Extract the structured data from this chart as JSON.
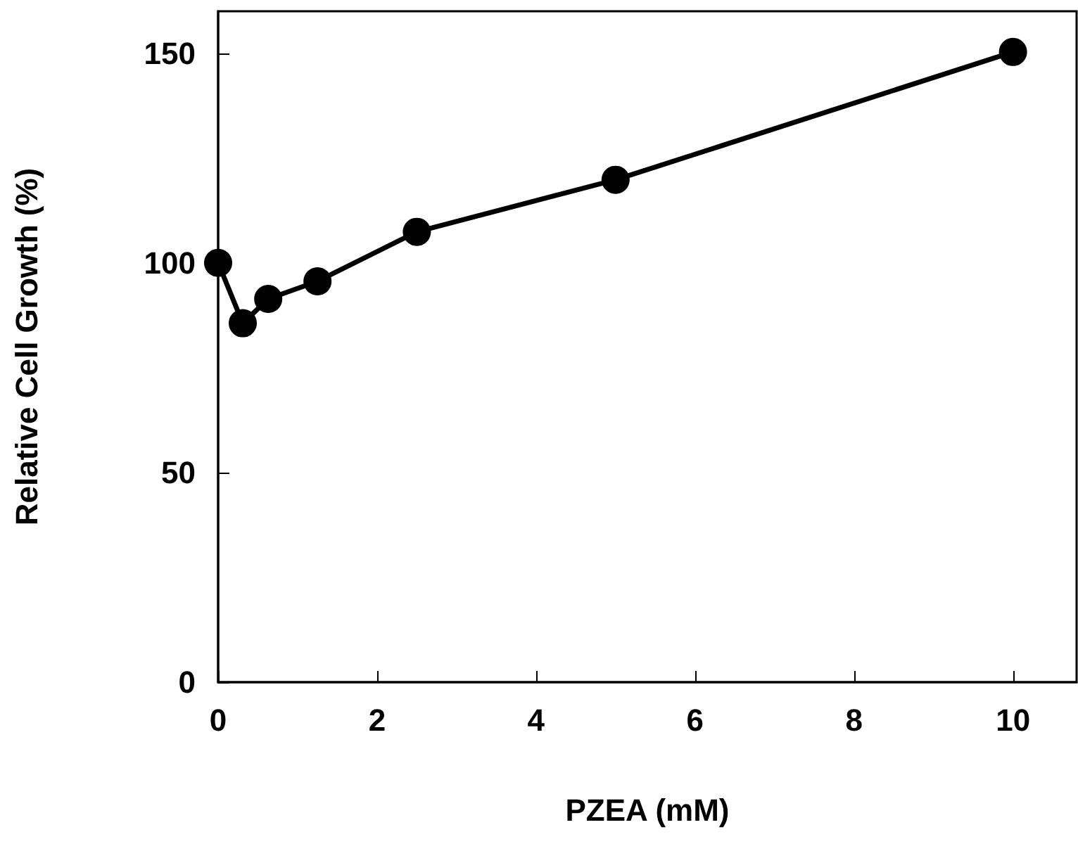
{
  "chart_data": {
    "type": "line",
    "xlabel": "PZEA (mM)",
    "ylabel": "Relative Cell Growth (%)",
    "x": [
      0,
      0.31,
      0.63,
      1.25,
      2.5,
      5,
      10
    ],
    "series": [
      {
        "color": "#000000",
        "values": [
          100,
          85.6,
          91.4,
          95.6,
          107.4,
          119.8,
          150.3
        ]
      }
    ],
    "xlim": [
      0,
      10.8
    ],
    "ylim": [
      0,
      160
    ],
    "xticks": [
      0,
      2,
      4,
      6,
      8,
      10
    ],
    "yticks": [
      0,
      50,
      100,
      150
    ],
    "grid": false,
    "marker": "circle",
    "line_style": "solid"
  }
}
